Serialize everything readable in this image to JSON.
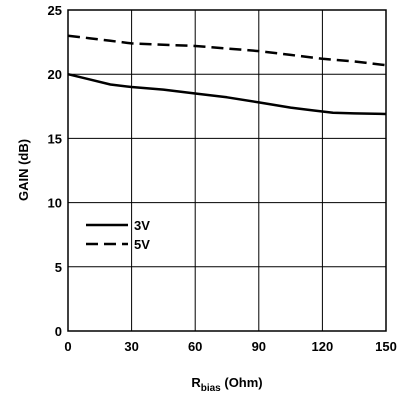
{
  "chart_data": {
    "type": "line",
    "title": "",
    "xlabel_main": "R",
    "xlabel_sub": "bias",
    "xlabel_unit": " (Ohm)",
    "ylabel": "GAIN (dB)",
    "xlim": [
      0,
      150
    ],
    "ylim": [
      0,
      25
    ],
    "x_ticks": [
      0,
      30,
      60,
      90,
      120,
      150
    ],
    "x_tick_labels": [
      "0",
      "30",
      "60",
      "90",
      "120",
      "150"
    ],
    "y_ticks": [
      0,
      5,
      10,
      15,
      20,
      25
    ],
    "y_tick_labels": [
      "0",
      "5",
      "10",
      "15",
      "20",
      "25"
    ],
    "grid": true,
    "legend_position": "lower-left",
    "series": [
      {
        "name": "3V",
        "line_style": "solid",
        "color": "#000000",
        "x": [
          0,
          10,
          20,
          30,
          45,
          60,
          75,
          90,
          105,
          115,
          125,
          135,
          150
        ],
        "y": [
          20.0,
          19.6,
          19.2,
          19.0,
          18.8,
          18.5,
          18.2,
          17.8,
          17.4,
          17.2,
          17.0,
          16.95,
          16.9
        ]
      },
      {
        "name": "5V",
        "line_style": "dashed",
        "color": "#000000",
        "x": [
          0,
          10,
          20,
          30,
          45,
          60,
          75,
          90,
          105,
          120,
          135,
          150
        ],
        "y": [
          23.0,
          22.8,
          22.6,
          22.4,
          22.3,
          22.2,
          22.0,
          21.8,
          21.5,
          21.2,
          21.0,
          20.7
        ]
      }
    ]
  }
}
